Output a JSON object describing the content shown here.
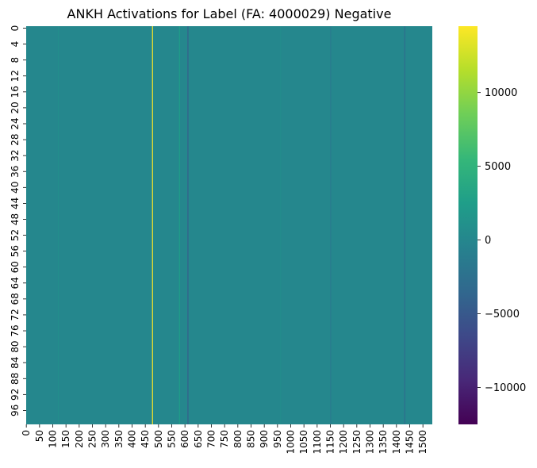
{
  "chart_data": {
    "type": "heatmap",
    "title": "ANKH Activations for Label (FA: 4000029) Negative",
    "xlabel": "",
    "ylabel": "",
    "colormap": "viridis",
    "n_rows": 100,
    "n_cols": 1536,
    "ytick_labels": [
      "0",
      "4",
      "8",
      "12",
      "16",
      "20",
      "24",
      "28",
      "32",
      "36",
      "40",
      "44",
      "48",
      "52",
      "56",
      "60",
      "64",
      "68",
      "72",
      "76",
      "80",
      "84",
      "88",
      "92",
      "96"
    ],
    "xtick_labels": [
      "0",
      "50",
      "100",
      "150",
      "200",
      "250",
      "300",
      "350",
      "400",
      "450",
      "500",
      "550",
      "600",
      "650",
      "700",
      "750",
      "800",
      "850",
      "900",
      "950",
      "1000",
      "1050",
      "1100",
      "1150",
      "1200",
      "1250",
      "1300",
      "1350",
      "1400",
      "1450",
      "1500"
    ],
    "background_value": 0,
    "notable_columns": [
      {
        "column": 476,
        "value": 14500
      },
      {
        "column": 578,
        "value": 2500
      },
      {
        "column": 610,
        "value": -4500
      },
      {
        "column": 1150,
        "value": -1500
      },
      {
        "column": 1430,
        "value": -3000
      },
      {
        "column": 120,
        "value": 800
      },
      {
        "column": 960,
        "value": 600
      }
    ],
    "colorbar": {
      "min": -12500,
      "max": 14500,
      "ticks": [
        -10000,
        -5000,
        0,
        5000,
        10000
      ],
      "tick_labels": [
        "−10000",
        "−5000",
        "0",
        "5000",
        "10000"
      ]
    }
  }
}
